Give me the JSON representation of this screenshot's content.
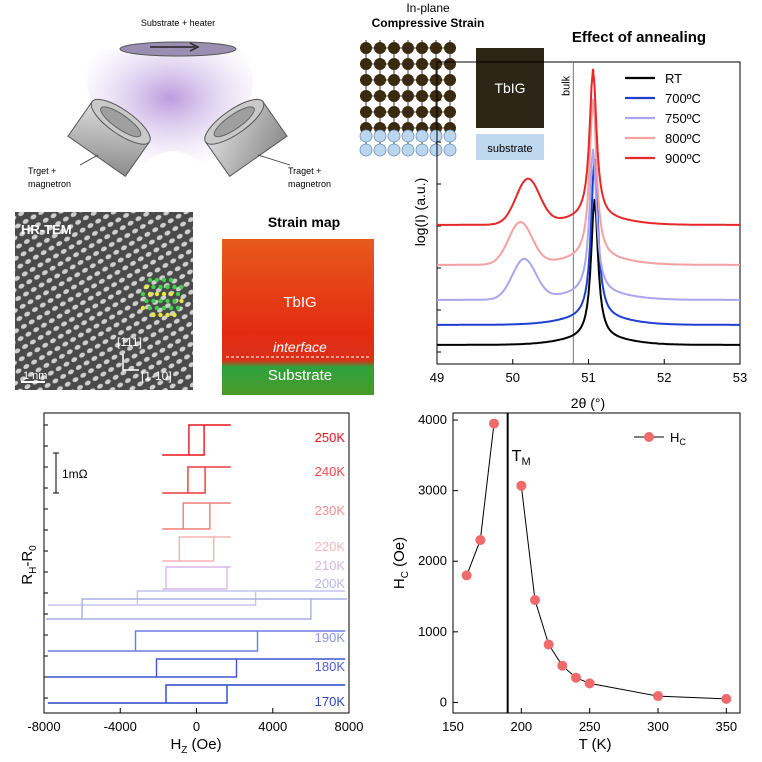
{
  "sputter": {
    "substrate_label": "Substrate + heater",
    "left_label_1": "Trget +",
    "left_label_2": "magnetron",
    "right_label_1": "Traget +",
    "right_label_2": "magnetron"
  },
  "strain": {
    "title_line1": "In-plane",
    "title_line2": "Compressive Strain",
    "film_label": "TbIG",
    "substrate_label": "substrate"
  },
  "tem": {
    "label": "HR-TEM",
    "dir1": "[111]",
    "dir2": "[1-10]",
    "scale": "1 nm"
  },
  "strainmap": {
    "title": "Strain map",
    "film_label": "TbIG",
    "interface_label": "interface",
    "substrate_label": "Substrate"
  },
  "colors": {
    "rt": "#000000",
    "c700": "#1f3fd0",
    "c750": "#a9a6ee",
    "c800": "#f4a0a0",
    "c900": "#e52828",
    "hc_marker": "#ef6b6b",
    "k250": "#e8141c",
    "k170": "#2b46c8"
  },
  "chart_data": [
    {
      "type": "line",
      "title": "Effect of annealing",
      "xlabel": "2θ (°)",
      "ylabel": "log(I) (a.u.)",
      "xlim": [
        49,
        53
      ],
      "x_ticks": [
        "49",
        "50",
        "51",
        "52",
        "53"
      ],
      "annotation": "bulk",
      "annotation_x": 50.8,
      "legend_position": "top-right",
      "series": [
        {
          "name": "RT",
          "peak_x": 51.08,
          "sub_peak_x": null
        },
        {
          "name": "700ºC",
          "peak_x": 51.08,
          "sub_peak_x": null
        },
        {
          "name": "750ºC",
          "peak_x": 51.06,
          "sub_peak_x": 50.15
        },
        {
          "name": "800ºC",
          "peak_x": 51.06,
          "sub_peak_x": 50.1
        },
        {
          "name": "900ºC",
          "peak_x": 51.06,
          "sub_peak_x": 50.2
        }
      ]
    },
    {
      "type": "line",
      "xlabel": "HZ (Oe)",
      "ylabel": "RH-R0",
      "xlim": [
        -8000,
        8000
      ],
      "x_ticks": [
        "-8000",
        "-4000",
        "0",
        "4000",
        "8000"
      ],
      "scale_bar": "1mΩ",
      "series": [
        {
          "name": "250K",
          "hc": 400
        },
        {
          "name": "240K",
          "hc": 450
        },
        {
          "name": "230K",
          "hc": 700
        },
        {
          "name": "220K",
          "hc": 900
        },
        {
          "name": "210K",
          "hc": 1600
        },
        {
          "name": "200K",
          "hc": 3100
        },
        {
          "name": "",
          "hc": 6000
        },
        {
          "name": "190K",
          "hc": 3200
        },
        {
          "name": "180K",
          "hc": 2100
        },
        {
          "name": "170K",
          "hc": 1600
        }
      ]
    },
    {
      "type": "scatter",
      "xlabel": "T (K)",
      "ylabel": "HC (Oe)",
      "xlim": [
        150,
        360
      ],
      "ylim": [
        -150,
        4100
      ],
      "x_ticks": [
        "150",
        "200",
        "250",
        "300",
        "350"
      ],
      "y_ticks": [
        "0",
        "1000",
        "2000",
        "3000",
        "4000"
      ],
      "legend": "HC",
      "legend_position": "top-right",
      "annotation": "TM",
      "annotation_x": 190,
      "points": [
        {
          "x": 160,
          "y": 1800
        },
        {
          "x": 170,
          "y": 2300
        },
        {
          "x": 180,
          "y": 3950
        },
        {
          "x": 200,
          "y": 3070
        },
        {
          "x": 210,
          "y": 1450
        },
        {
          "x": 220,
          "y": 820
        },
        {
          "x": 230,
          "y": 520
        },
        {
          "x": 240,
          "y": 350
        },
        {
          "x": 250,
          "y": 270
        },
        {
          "x": 300,
          "y": 90
        },
        {
          "x": 350,
          "y": 50
        }
      ]
    }
  ]
}
